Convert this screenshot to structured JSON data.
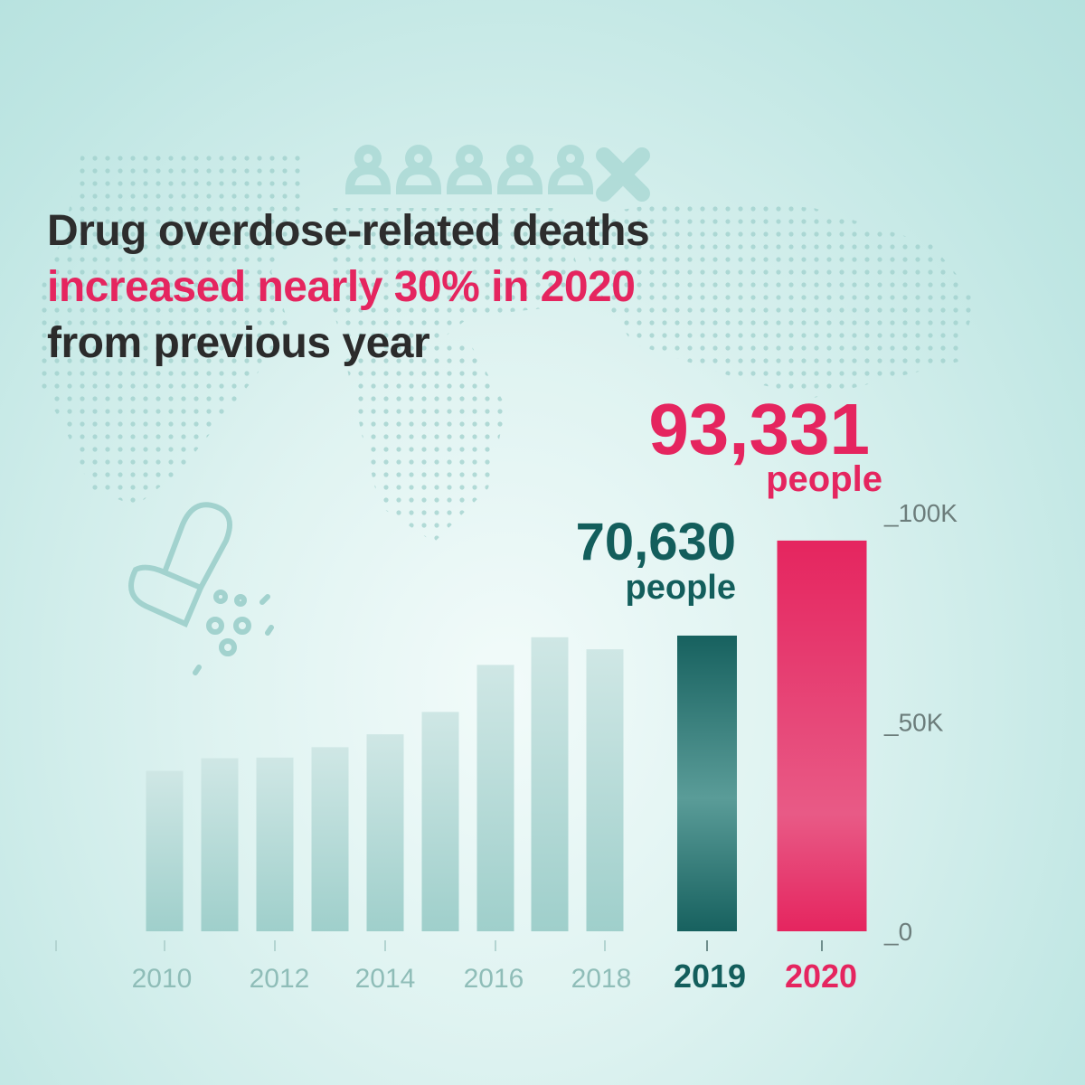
{
  "headline": {
    "line1": "Drug overdose-related deaths",
    "line2": "increased nearly 30% in 2020",
    "line3": "from previous year"
  },
  "callouts": {
    "y2020": {
      "value": "93,331",
      "unit": "people"
    },
    "y2019": {
      "value": "70,630",
      "unit": "people"
    }
  },
  "colors": {
    "accent": "#e5255f",
    "teal_dark": "#135e5c",
    "bar_light": "#a6d6d2",
    "tick_text": "#8fbdb8",
    "axis_text": "#6c7d7b"
  },
  "icons": [
    "people-icons",
    "capsule-icon",
    "world-map-dots"
  ],
  "chart_data": {
    "type": "bar",
    "categories": [
      "2010",
      "2011",
      "2012",
      "2013",
      "2014",
      "2015",
      "2016",
      "2017",
      "2018",
      "2019",
      "2020"
    ],
    "tick_labels": [
      "2010",
      "2012",
      "2014",
      "2016",
      "2018",
      "2019",
      "2020"
    ],
    "values": [
      38329,
      41340,
      41502,
      43982,
      47055,
      52404,
      63632,
      70237,
      67367,
      70630,
      93331
    ],
    "highlight": {
      "2019": "#135e5c",
      "2020": "#e5255f"
    },
    "y_ticks": [
      {
        "value": 0,
        "label": "_0"
      },
      {
        "value": 50000,
        "label": "_50K"
      },
      {
        "value": 100000,
        "label": "_100K"
      }
    ],
    "ylim": [
      0,
      100000
    ],
    "grid": false,
    "legend": "none"
  }
}
